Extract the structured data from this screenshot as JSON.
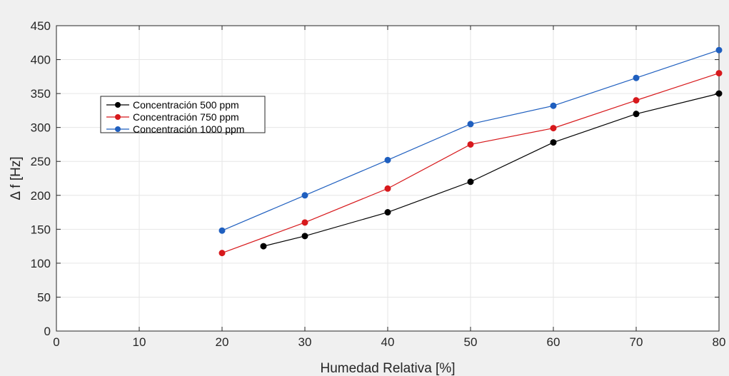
{
  "chart_data": {
    "type": "line",
    "xlabel": "Humedad Relativa [%]",
    "ylabel": "Δ f [Hz]",
    "xlim": [
      0,
      80
    ],
    "ylim": [
      0,
      450
    ],
    "xticks": [
      0,
      10,
      20,
      30,
      40,
      50,
      60,
      70,
      80
    ],
    "yticks": [
      0,
      50,
      100,
      150,
      200,
      250,
      300,
      350,
      400,
      450
    ],
    "grid": true,
    "legend_position": "upper-left",
    "series": [
      {
        "name": "Concentración 500 ppm",
        "color": "#000000",
        "x": [
          25,
          30,
          40,
          50,
          60,
          70,
          80
        ],
        "y": [
          125,
          140,
          175,
          220,
          278,
          320,
          350
        ]
      },
      {
        "name": "Concentración 750 ppm",
        "color": "#d7191c",
        "x": [
          20,
          30,
          40,
          50,
          60,
          70,
          80
        ],
        "y": [
          115,
          160,
          210,
          275,
          299,
          340,
          380
        ]
      },
      {
        "name": "Concentración 1000 ppm",
        "color": "#1f5fbf",
        "x": [
          20,
          30,
          40,
          50,
          60,
          70,
          80
        ],
        "y": [
          148,
          200,
          252,
          305,
          332,
          373,
          414
        ]
      }
    ]
  }
}
